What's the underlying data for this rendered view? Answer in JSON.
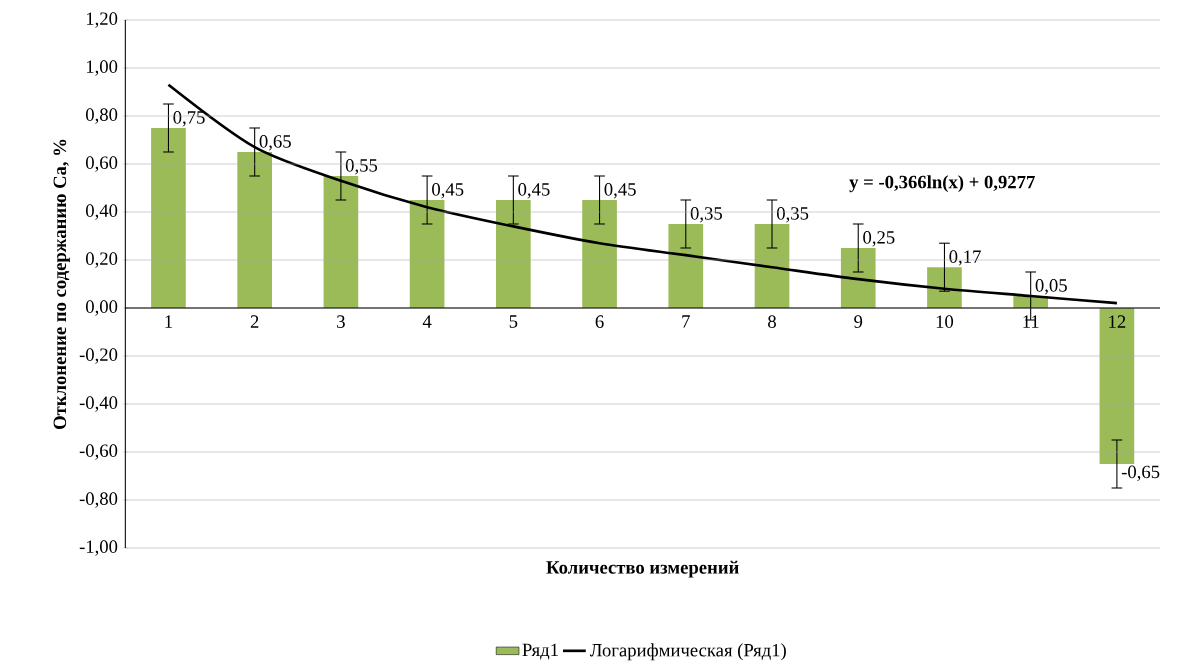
{
  "chart_data": {
    "type": "bar",
    "categories": [
      "1",
      "2",
      "3",
      "4",
      "5",
      "6",
      "7",
      "8",
      "9",
      "10",
      "11",
      "12"
    ],
    "series": [
      {
        "name": "Ряд1",
        "color": "#9bbb59",
        "values": [
          0.75,
          0.65,
          0.55,
          0.45,
          0.45,
          0.45,
          0.35,
          0.35,
          0.25,
          0.17,
          0.05,
          -0.65
        ],
        "errors": [
          0.1,
          0.1,
          0.1,
          0.1,
          0.1,
          0.1,
          0.1,
          0.1,
          0.1,
          0.1,
          0.1,
          0.1
        ],
        "value_labels": [
          "0,75",
          "0,65",
          "0,55",
          "0,45",
          "0,45",
          "0,45",
          "0,35",
          "0,35",
          "0,25",
          "0,17",
          "0,05",
          "-0,65"
        ]
      },
      {
        "name": "Логарифмическая (Ряд1)",
        "type": "line",
        "color": "#000000",
        "values": [
          0.93,
          0.67,
          0.53,
          0.42,
          0.34,
          0.27,
          0.22,
          0.17,
          0.12,
          0.08,
          0.05,
          0.02
        ]
      }
    ],
    "xlabel": "Количество измерений",
    "ylabel": "Отклонение по содержанию Ca, %",
    "ylim": [
      -1.0,
      1.2
    ],
    "yticks": [
      {
        "value": -1.0,
        "label": "-1,00"
      },
      {
        "value": -0.8,
        "label": "-0,80"
      },
      {
        "value": -0.6,
        "label": "-0,60"
      },
      {
        "value": -0.4,
        "label": "-0,40"
      },
      {
        "value": -0.2,
        "label": "-0,20"
      },
      {
        "value": 0.0,
        "label": "0,00"
      },
      {
        "value": 0.2,
        "label": "0,20"
      },
      {
        "value": 0.4,
        "label": "0,40"
      },
      {
        "value": 0.6,
        "label": "0,60"
      },
      {
        "value": 0.8,
        "label": "0,80"
      },
      {
        "value": 1.0,
        "label": "1,00"
      },
      {
        "value": 1.2,
        "label": "1,20"
      }
    ],
    "grid": "y",
    "legend": "bottom",
    "annotations": [
      "y = -0,366ln(x) + 0,9277"
    ]
  }
}
